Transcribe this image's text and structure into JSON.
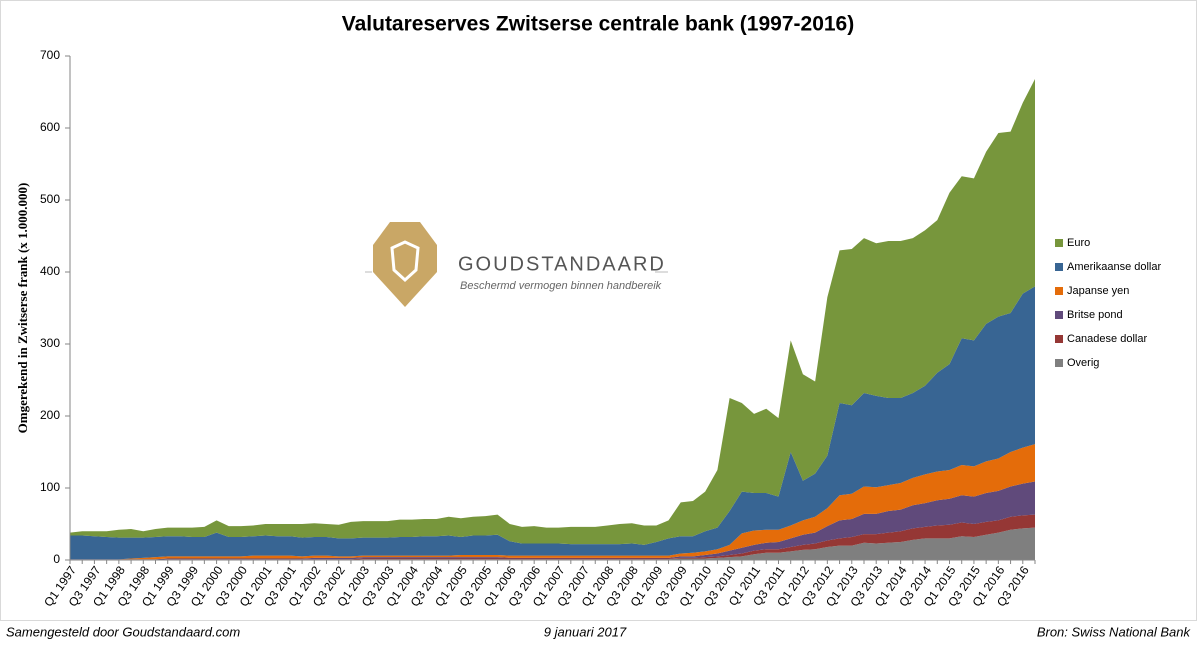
{
  "chart_data": {
    "type": "stacked_area",
    "title": "Valutareserves Zwitserse centrale bank (1997-2016)",
    "y_label": "Omgerekend in Zwitserse frank (x 1.000.000)",
    "watermark": {
      "name": "GOUDSTANDAARD",
      "tagline": "Beschermd vermogen binnen handbereik"
    },
    "footer": {
      "left": "Samengesteld door Goudstandaard.com",
      "center": "9 januari 2017",
      "right": "Bron: Swiss National Bank"
    },
    "legend": "right",
    "categories": [
      "Q1 1997",
      null,
      "Q3 1997",
      null,
      "Q1 1998",
      null,
      "Q3 1998",
      null,
      "Q1 1999",
      null,
      "Q3 1999",
      null,
      "Q1 2000",
      null,
      "Q3 2000",
      null,
      "Q1 2001",
      null,
      "Q3 2001",
      null,
      "Q1 2002",
      null,
      "Q3 2002",
      null,
      "Q1 2003",
      null,
      "Q3 2003",
      null,
      "Q1 2004",
      null,
      "Q3 2004",
      null,
      "Q1 2005",
      null,
      "Q3 2005",
      null,
      "Q1 2006",
      null,
      "Q3 2006",
      null,
      "Q1 2007",
      null,
      "Q3 2007",
      null,
      "Q1 2008",
      null,
      "Q3 2008",
      null,
      "Q1 2009",
      null,
      "Q3 2009",
      null,
      "Q1 2010",
      null,
      "Q3 2010",
      null,
      "Q1 2011",
      null,
      "Q3 2011",
      null,
      "Q1 2012",
      null,
      "Q3 2012",
      null,
      "Q1 2013",
      null,
      "Q3 2013",
      null,
      "Q1 2014",
      null,
      "Q3 2014",
      null,
      "Q1 2015",
      null,
      "Q3 2015",
      null,
      "Q1 2016",
      null,
      "Q3 2016",
      null
    ],
    "ylim": [
      0,
      700
    ],
    "yticks": [
      0,
      100,
      200,
      300,
      400,
      500,
      600,
      700
    ],
    "series": [
      {
        "name": "Euro",
        "color": "#77963c",
        "values": [
          4,
          6,
          7,
          8,
          11,
          12,
          9,
          11,
          12,
          12,
          13,
          14,
          17,
          15,
          15,
          15,
          16,
          17,
          17,
          19,
          19,
          18,
          19,
          23,
          23,
          23,
          23,
          24,
          24,
          24,
          24,
          26,
          26,
          26,
          27,
          28,
          24,
          23,
          24,
          22,
          22,
          24,
          24,
          24,
          26,
          28,
          28,
          27,
          23,
          25,
          47,
          49,
          55,
          80,
          157,
          123,
          110,
          117,
          109,
          155,
          148,
          128,
          220,
          212,
          217,
          215,
          212,
          218,
          218,
          215,
          216,
          212,
          238,
          225,
          225,
          239,
          255,
          252,
          265,
          288
        ]
      },
      {
        "name": "Amerikaanse dollar",
        "color": "#386593",
        "values": [
          33,
          33,
          32,
          31,
          30,
          29,
          28,
          28,
          28,
          28,
          27,
          27,
          33,
          27,
          27,
          27,
          28,
          27,
          27,
          26,
          26,
          26,
          25,
          25,
          25,
          25,
          25,
          26,
          26,
          27,
          27,
          28,
          25,
          27,
          27,
          28,
          20,
          17,
          17,
          17,
          17,
          16,
          16,
          16,
          16,
          16,
          17,
          15,
          19,
          24,
          24,
          23,
          28,
          30,
          47,
          58,
          52,
          51,
          46,
          102,
          55,
          60,
          73,
          128,
          123,
          130,
          127,
          121,
          118,
          118,
          123,
          137,
          147,
          176,
          175,
          191,
          197,
          193,
          214,
          219
        ]
      },
      {
        "name": "Japanse yen",
        "color": "#e46c0a",
        "values": [
          0,
          0,
          0,
          0,
          0,
          1,
          2,
          3,
          3,
          3,
          3,
          3,
          3,
          3,
          3,
          4,
          4,
          4,
          4,
          3,
          3,
          3,
          2,
          2,
          2,
          2,
          2,
          2,
          2,
          2,
          2,
          2,
          3,
          3,
          3,
          3,
          3,
          3,
          3,
          3,
          3,
          3,
          3,
          3,
          3,
          3,
          3,
          3,
          3,
          3,
          4,
          5,
          5,
          6,
          8,
          20,
          20,
          18,
          17,
          18,
          20,
          22,
          25,
          35,
          35,
          38,
          37,
          36,
          37,
          38,
          40,
          40,
          40,
          42,
          42,
          44,
          45,
          48,
          50,
          52
        ]
      },
      {
        "name": "Britse pond",
        "color": "#604a7b",
        "values": [
          1,
          1,
          1,
          1,
          1,
          1,
          1,
          1,
          1,
          1,
          1,
          1,
          1,
          1,
          1,
          1,
          1,
          1,
          1,
          1,
          2,
          2,
          2,
          2,
          2,
          2,
          2,
          2,
          2,
          2,
          2,
          2,
          2,
          2,
          2,
          2,
          1,
          1,
          1,
          1,
          1,
          1,
          1,
          1,
          1,
          1,
          1,
          1,
          1,
          1,
          2,
          2,
          3,
          4,
          6,
          8,
          8,
          9,
          10,
          12,
          14,
          15,
          20,
          25,
          25,
          28,
          28,
          30,
          30,
          32,
          33,
          35,
          36,
          38,
          38,
          40,
          41,
          42,
          44,
          46
        ]
      },
      {
        "name": "Canadese dollar",
        "color": "#953735",
        "values": [
          0,
          0,
          0,
          0,
          0,
          0,
          0,
          0,
          1,
          1,
          1,
          1,
          1,
          1,
          1,
          1,
          1,
          1,
          1,
          1,
          1,
          1,
          1,
          1,
          1,
          1,
          1,
          1,
          1,
          1,
          1,
          1,
          1,
          1,
          1,
          1,
          1,
          1,
          1,
          1,
          1,
          1,
          1,
          1,
          1,
          1,
          1,
          1,
          1,
          1,
          1,
          1,
          2,
          2,
          3,
          4,
          5,
          5,
          5,
          6,
          7,
          8,
          9,
          10,
          12,
          12,
          13,
          14,
          15,
          16,
          16,
          18,
          19,
          19,
          18,
          18,
          17,
          18,
          18,
          18
        ]
      },
      {
        "name": "Overig",
        "color": "#7f7f7f",
        "values": [
          0,
          0,
          0,
          0,
          0,
          0,
          0,
          0,
          0,
          0,
          0,
          0,
          0,
          0,
          0,
          0,
          0,
          0,
          0,
          0,
          0,
          0,
          0,
          0,
          1,
          1,
          1,
          1,
          1,
          1,
          1,
          1,
          1,
          1,
          1,
          1,
          1,
          1,
          1,
          1,
          1,
          1,
          1,
          1,
          1,
          1,
          1,
          1,
          1,
          1,
          2,
          2,
          2,
          3,
          4,
          5,
          8,
          10,
          10,
          12,
          14,
          15,
          18,
          20,
          20,
          24,
          23,
          24,
          25,
          28,
          30,
          30,
          30,
          33,
          32,
          35,
          38,
          42,
          44,
          45
        ]
      }
    ]
  }
}
